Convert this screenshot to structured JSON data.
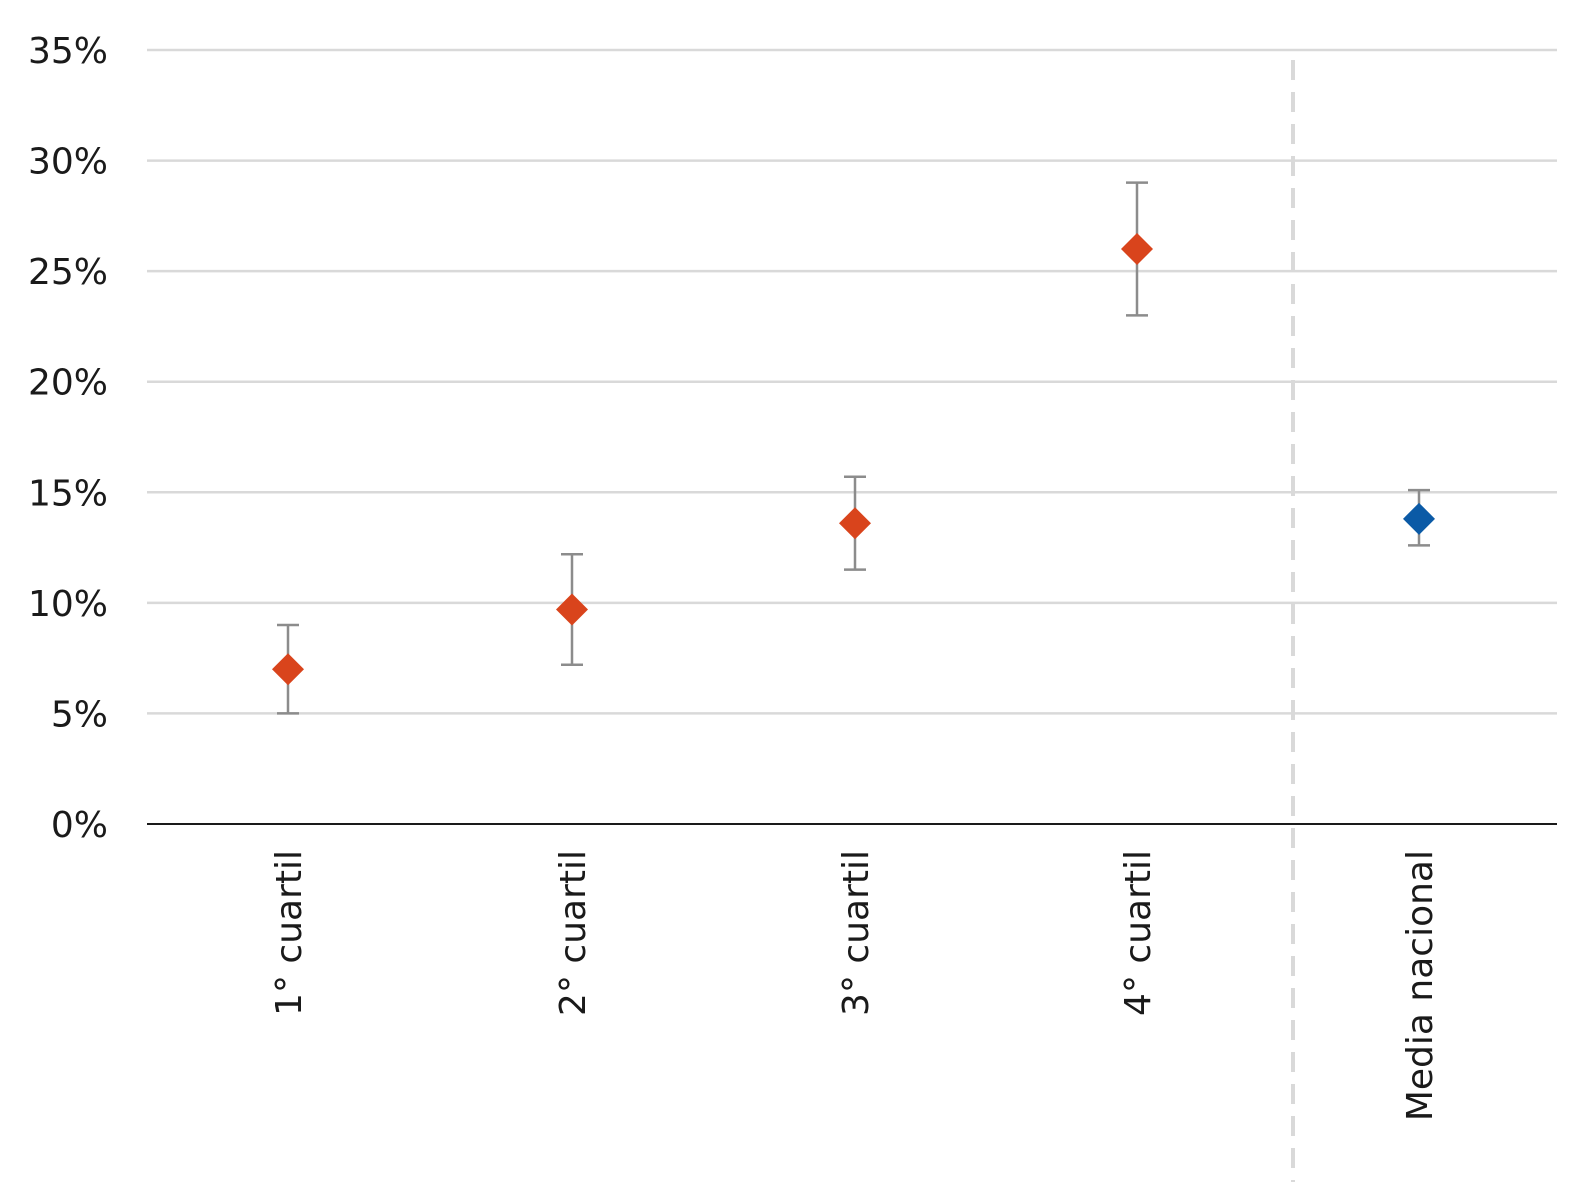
{
  "chart_data": {
    "type": "scatter",
    "title": "",
    "xlabel": "",
    "ylabel": "",
    "ylim": [
      0,
      0.35
    ],
    "y_ticks": [
      "0%",
      "5%",
      "10%",
      "15%",
      "20%",
      "25%",
      "30%",
      "35%"
    ],
    "y_tick_values": [
      0,
      0.05,
      0.1,
      0.15,
      0.2,
      0.25,
      0.3,
      0.35
    ],
    "grid": true,
    "categories": [
      "1° cuartil",
      "2° cuartil",
      "3° cuartil",
      "4° cuartil",
      "Media nacional"
    ],
    "values": [
      0.07,
      0.097,
      0.136,
      0.26,
      0.138
    ],
    "lower": [
      0.05,
      0.072,
      0.115,
      0.23,
      0.126
    ],
    "upper": [
      0.09,
      0.122,
      0.157,
      0.29,
      0.151
    ],
    "separator_after_index": 3,
    "colors": {
      "quartile_marker": "#d9441c",
      "national_marker": "#0b5aa6",
      "error_bar": "#8c8c8c",
      "gridline": "#d9d9d9",
      "separator": "#d9d9d9"
    }
  }
}
